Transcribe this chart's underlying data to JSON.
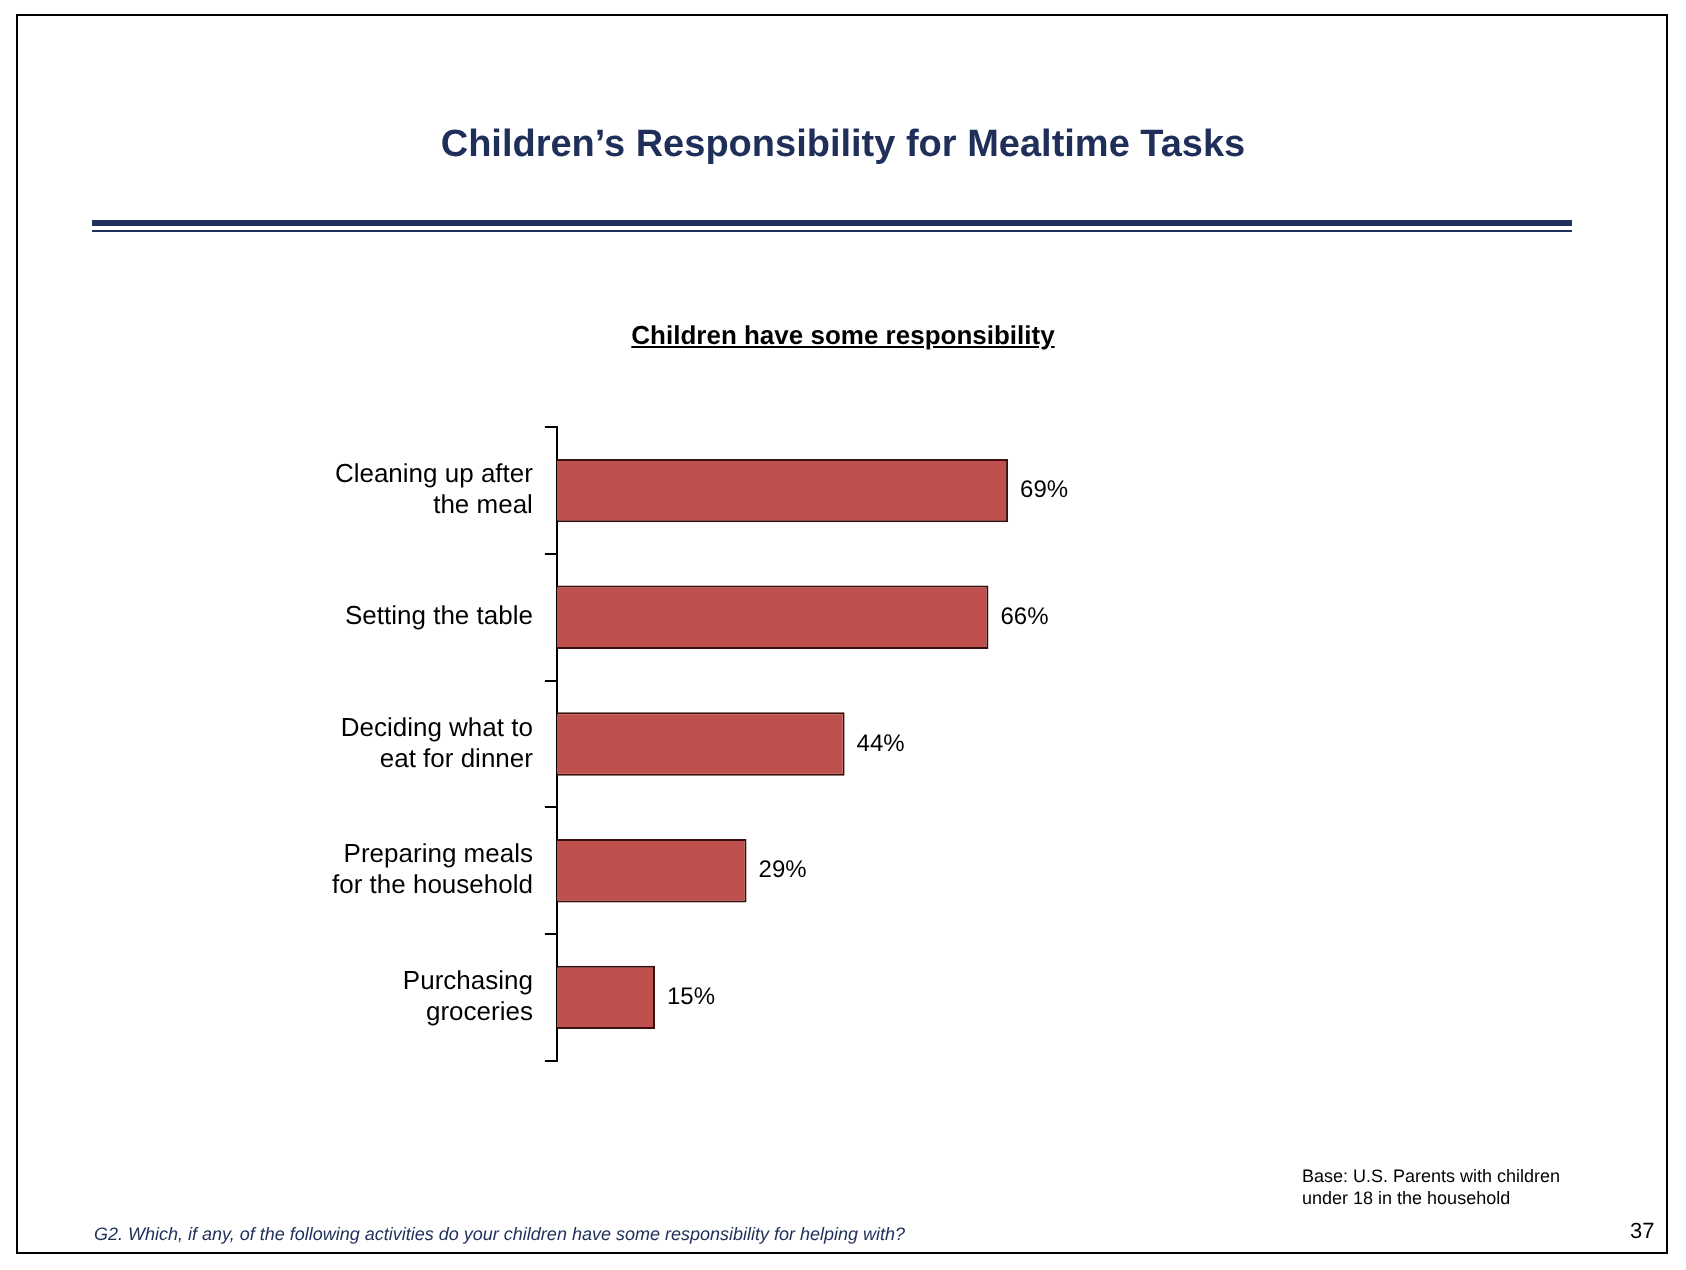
{
  "chart_data": {
    "type": "bar",
    "orientation": "horizontal",
    "title": "Children’s Responsibility for Mealtime Tasks",
    "subtitle": "Children have some responsibility",
    "categories": [
      "Cleaning up after the meal",
      "Setting the table",
      "Deciding what to eat for dinner",
      "Preparing meals for the household",
      "Purchasing groceries"
    ],
    "values": [
      69,
      66,
      44,
      29,
      15
    ],
    "value_labels": [
      "69%",
      "66%",
      "44%",
      "29%",
      "15%"
    ],
    "color": "#c0504d",
    "legend": false,
    "tick_labels": "y",
    "annotations": [
      "Base: U.S. Parents with children under 18 in the household",
      "G2. Which, if any, of the following activities do your children have some responsibility for helping with?",
      "37"
    ]
  }
}
